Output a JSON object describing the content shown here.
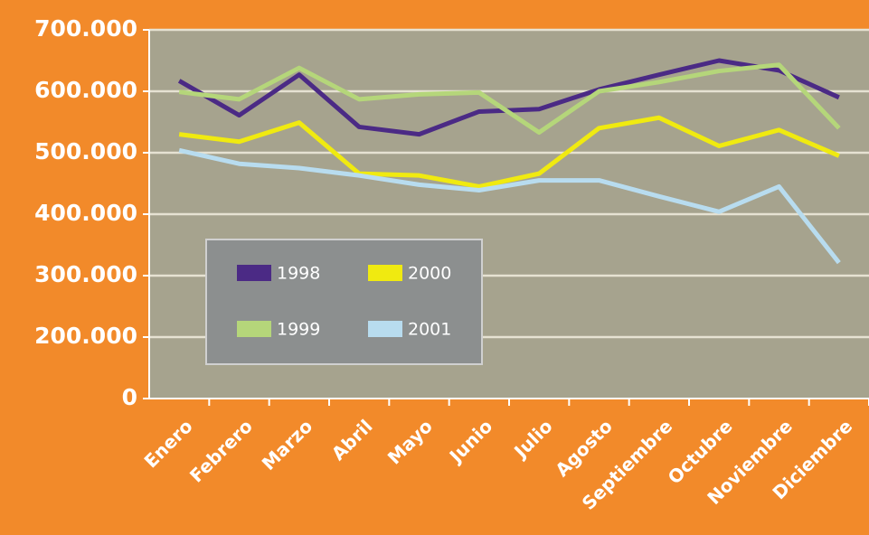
{
  "chart_data": {
    "type": "line",
    "categories": [
      "Enero",
      "Febrero",
      "Marzo",
      "Abril",
      "Mayo",
      "Junio",
      "Julio",
      "Agosto",
      "Septiembre",
      "Octubre",
      "Noviembre",
      "Diciembre"
    ],
    "series": [
      {
        "name": "1998",
        "color": "#4b2a85",
        "values": [
          617000,
          561000,
          627000,
          542000,
          530000,
          567000,
          571000,
          603000,
          627000,
          650000,
          634000,
          590000
        ]
      },
      {
        "name": "1999",
        "color": "#b5d67a",
        "values": [
          599000,
          587000,
          638000,
          587000,
          595000,
          598000,
          533000,
          600000,
          615000,
          633000,
          643000,
          540000
        ]
      },
      {
        "name": "2000",
        "color": "#f0ea10",
        "values": [
          530000,
          518000,
          549000,
          466000,
          463000,
          445000,
          466000,
          540000,
          557000,
          511000,
          537000,
          495000
        ]
      },
      {
        "name": "2001",
        "color": "#b8dcef",
        "values": [
          504000,
          482000,
          475000,
          463000,
          448000,
          439000,
          455000,
          455000,
          429000,
          404000,
          445000,
          321000
        ]
      }
    ],
    "ylim": [
      0,
      700000
    ],
    "yticks": [
      0,
      {
        "value": 200000,
        "label": "200.000"
      },
      {
        "value": 300000,
        "label": "300.000"
      },
      {
        "value": 400000,
        "label": "400.000"
      },
      {
        "value": 500000,
        "label": "500.000"
      },
      {
        "value": 600000,
        "label": "600.000"
      },
      {
        "value": 700000,
        "label": "700.000"
      }
    ],
    "y_axis_break": true,
    "grid": true,
    "legend": "lower-left"
  }
}
